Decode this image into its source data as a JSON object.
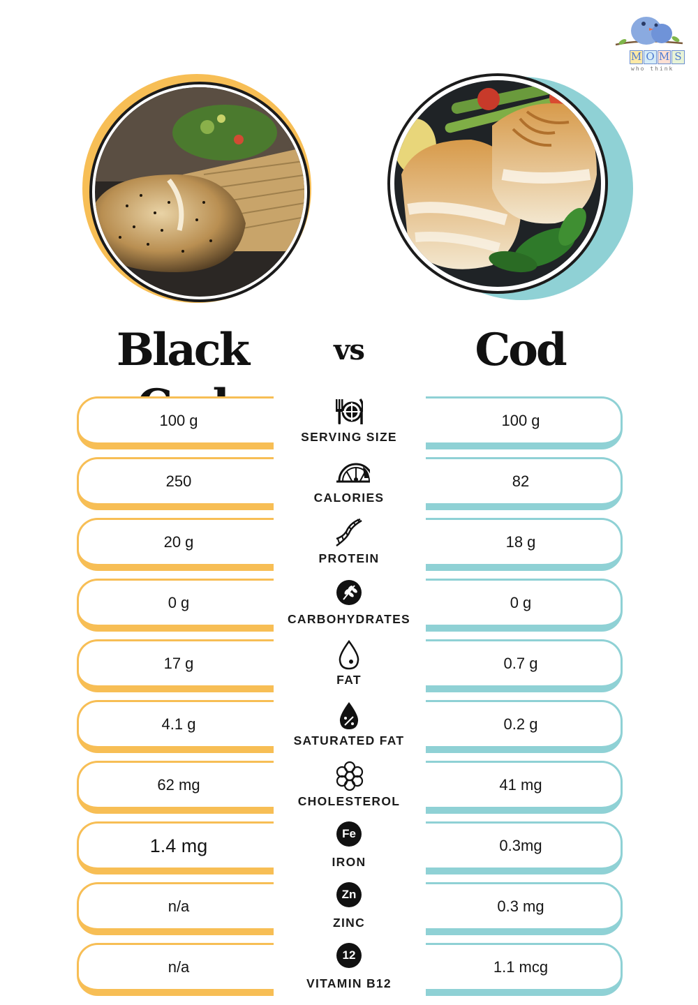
{
  "logo": {
    "letters": [
      "M",
      "O",
      "M",
      "S"
    ],
    "tagline": "who think",
    "icon": "bird-icon"
  },
  "photos": {
    "left": {
      "icon": "black-cod-photo",
      "ring_color": "#f7be55"
    },
    "right": {
      "icon": "cod-photo",
      "ring_color": "#8fd1d5"
    }
  },
  "header": {
    "left_title": "Black Cod",
    "vs": "vs",
    "right_title": "Cod"
  },
  "colors": {
    "left_accent": "#f7be55",
    "right_accent": "#8fd1d5"
  },
  "rows": [
    {
      "label": "SERVING SIZE",
      "icon": "utensils-plate-icon",
      "left": "100 g",
      "right": "100 g"
    },
    {
      "label": "CALORIES",
      "icon": "gauge-icon",
      "left": "250",
      "right": "82"
    },
    {
      "label": "PROTEIN",
      "icon": "dna-helix-icon",
      "left": "20 g",
      "right": "18 g"
    },
    {
      "label": "CARBOHYDRATES",
      "icon": "wheat-icon",
      "left": "0 g",
      "right": "0 g"
    },
    {
      "label": "FAT",
      "icon": "drop-icon",
      "left": "17 g",
      "right": "0.7 g"
    },
    {
      "label": "SATURATED FAT",
      "icon": "percent-drop-icon",
      "left": "4.1 g",
      "right": "0.2 g"
    },
    {
      "label": "CHOLESTEROL",
      "icon": "molecule-icon",
      "left": "62 mg",
      "right": "41 mg"
    },
    {
      "label": "IRON",
      "icon": "fe-badge-icon",
      "badge": "Fe",
      "left": "1.4 mg",
      "right": "0.3mg"
    },
    {
      "label": "ZINC",
      "icon": "zn-badge-icon",
      "badge": "Zn",
      "left": "n/a",
      "right": "0.3 mg"
    },
    {
      "label": "VITAMIN B12",
      "icon": "b12-badge-icon",
      "badge": "12",
      "left": "n/a",
      "right": "1.1 mcg"
    }
  ]
}
